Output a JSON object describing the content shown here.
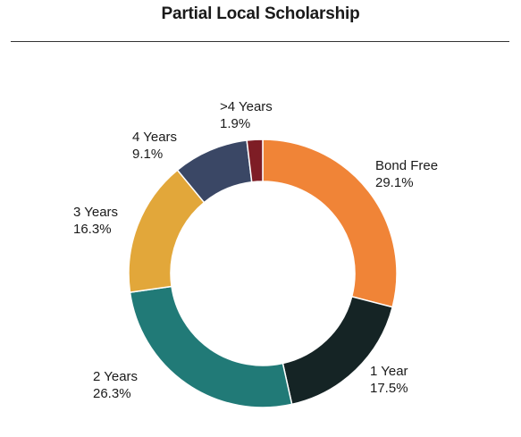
{
  "chart_data": {
    "type": "pie",
    "title": "Partial Local Scholarship",
    "donut": true,
    "legend": "none",
    "slices": [
      {
        "label": "Bond Free",
        "value": 29.1,
        "value_label": "29.1%",
        "color": "#F08437"
      },
      {
        "label": "1 Year",
        "value": 17.5,
        "value_label": "17.5%",
        "color": "#152425"
      },
      {
        "label": "2 Years",
        "value": 26.3,
        "value_label": "26.3%",
        "color": "#217A77"
      },
      {
        "label": "3 Years",
        "value": 16.3,
        "value_label": "16.3%",
        "color": "#E2A73A"
      },
      {
        "label": "4 Years",
        "value": 9.1,
        "value_label": "9.1%",
        "color": "#3A4765"
      },
      {
        "label": ">4 Years",
        "value": 1.9,
        "value_label": "1.9%",
        "color": "#7E1D25"
      }
    ]
  }
}
